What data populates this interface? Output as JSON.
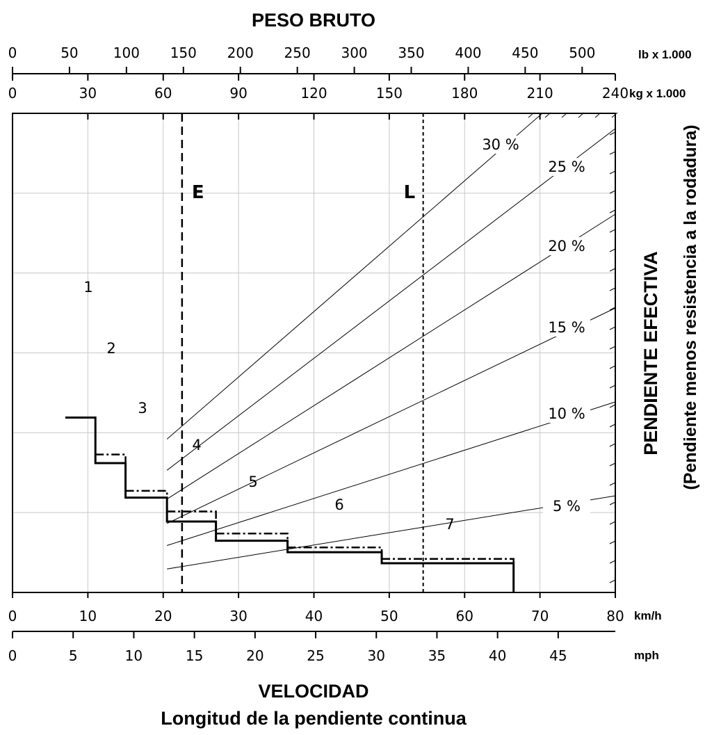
{
  "chart_data": {
    "type": "line",
    "title": "PESO BRUTO",
    "xlabel": "VELOCIDAD",
    "subtitle": "Longitud de la pendiente continua",
    "ylabel": "PENDIENTE EFECTIVA",
    "ylabel_sub": "(Pendiente menos resistencia a la rodadura)",
    "weight_axis_lb": {
      "unit": "lb x 1.000",
      "ticks": [
        "0",
        "50",
        "100",
        "150",
        "200",
        "250",
        "300",
        "350",
        "400",
        "450",
        "500"
      ]
    },
    "weight_axis_kg": {
      "unit": "kg x 1.000",
      "ticks": [
        "0",
        "30",
        "60",
        "90",
        "120",
        "150",
        "180",
        "210",
        "240"
      ]
    },
    "speed_axis_kmh": {
      "unit": "km/h",
      "ticks": [
        "0",
        "10",
        "20",
        "30",
        "40",
        "50",
        "60",
        "70",
        "80"
      ],
      "range": [
        0,
        80
      ]
    },
    "speed_axis_mph": {
      "unit": "mph",
      "ticks": [
        "0",
        "5",
        "10",
        "15",
        "20",
        "25",
        "30",
        "35",
        "40",
        "45"
      ]
    },
    "grade_lines": [
      {
        "label": "30 %",
        "grade": 30
      },
      {
        "label": "25 %",
        "grade": 25
      },
      {
        "label": "20 %",
        "grade": 20
      },
      {
        "label": "15 %",
        "grade": 15
      },
      {
        "label": "10 %",
        "grade": 10
      },
      {
        "label": "5 %",
        "grade": 5
      }
    ],
    "markers": [
      {
        "label": "E",
        "kmh": 22.5,
        "style": "dashed"
      },
      {
        "label": "L",
        "kmh": 54.5,
        "style": "dotted"
      }
    ],
    "gear_curve_solid": [
      {
        "gear": "1",
        "from_kmh": 7,
        "to_kmh": 11,
        "level": 0.365
      },
      {
        "gear": "2",
        "from_kmh": 11,
        "to_kmh": 15,
        "level": 0.27
      },
      {
        "gear": "3",
        "from_kmh": 15,
        "to_kmh": 20.5,
        "level": 0.198
      },
      {
        "gear": "4",
        "from_kmh": 20.5,
        "to_kmh": 27,
        "level": 0.148
      },
      {
        "gear": "5",
        "from_kmh": 27,
        "to_kmh": 36.5,
        "level": 0.108
      },
      {
        "gear": "6",
        "from_kmh": 36.5,
        "to_kmh": 49,
        "level": 0.084
      },
      {
        "gear": "7",
        "from_kmh": 49,
        "to_kmh": 66.5,
        "level": 0.061
      }
    ],
    "gear_curve_dashdot": [
      {
        "gear": "2",
        "from_kmh": 11,
        "to_kmh": 15,
        "level": 0.288
      },
      {
        "gear": "3",
        "from_kmh": 15,
        "to_kmh": 20.5,
        "level": 0.212
      },
      {
        "gear": "4",
        "from_kmh": 20.5,
        "to_kmh": 27,
        "level": 0.169
      },
      {
        "gear": "5",
        "from_kmh": 27,
        "to_kmh": 36.5,
        "level": 0.123
      },
      {
        "gear": "6",
        "from_kmh": 36.5,
        "to_kmh": 49,
        "level": 0.094
      },
      {
        "gear": "7",
        "from_kmh": 49,
        "to_kmh": 66.5,
        "level": 0.07
      }
    ],
    "grid": true
  }
}
